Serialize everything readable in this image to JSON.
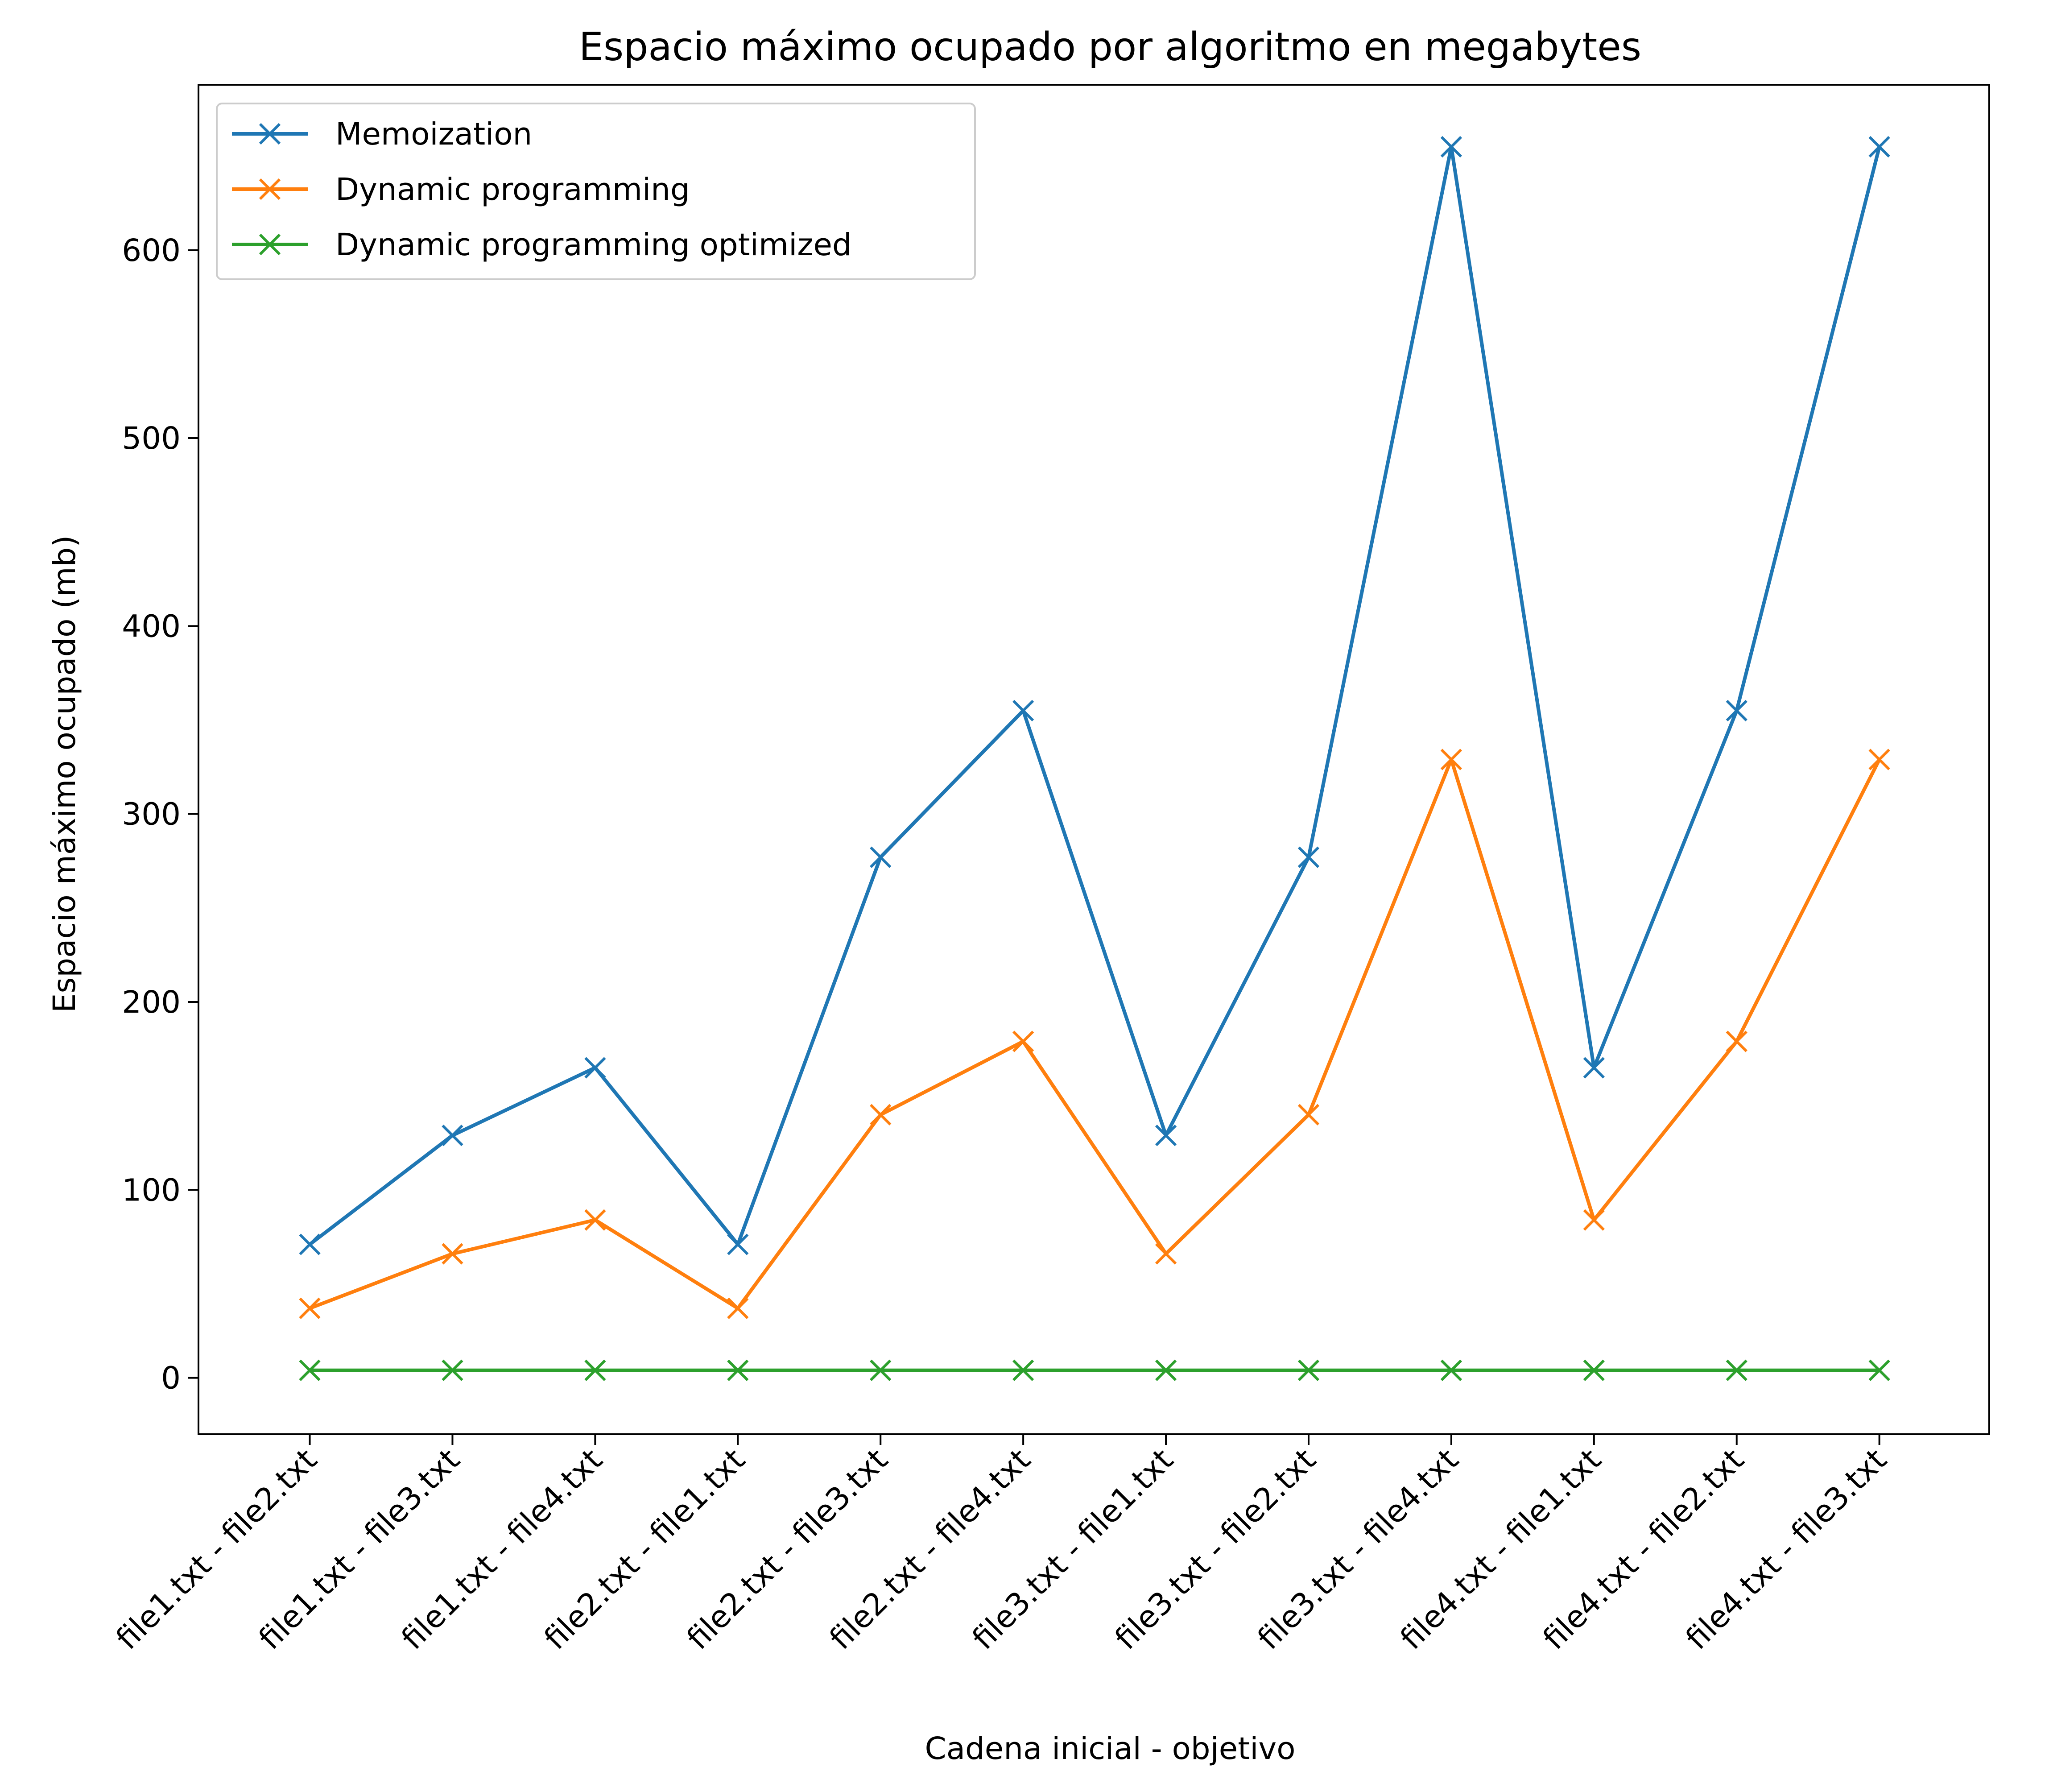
{
  "chart_data": {
    "type": "line",
    "title": "Espacio máximo ocupado por algoritmo en megabytes",
    "xlabel": "Cadena inicial - objetivo",
    "ylabel": "Espacio máximo ocupado (mb)",
    "categories": [
      "file1.txt - file2.txt",
      "file1.txt - file3.txt",
      "file1.txt - file4.txt",
      "file2.txt - file1.txt",
      "file2.txt - file3.txt",
      "file2.txt - file4.txt",
      "file3.txt - file1.txt",
      "file3.txt - file2.txt",
      "file3.txt - file4.txt",
      "file4.txt - file1.txt",
      "file4.txt - file2.txt",
      "file4.txt - file3.txt"
    ],
    "series": [
      {
        "name": "Memoization",
        "color": "#1f77b4",
        "marker": "x",
        "values": [
          71,
          129,
          165,
          71,
          277,
          355,
          129,
          277,
          655,
          165,
          355,
          655
        ]
      },
      {
        "name": "Dynamic programming",
        "color": "#ff7f0e",
        "marker": "x",
        "values": [
          37,
          66,
          84,
          37,
          140,
          179,
          66,
          140,
          329,
          84,
          179,
          329
        ]
      },
      {
        "name": "Dynamic programming optimized",
        "color": "#2ca02c",
        "marker": "x",
        "values": [
          4,
          4,
          4,
          4,
          4,
          4,
          4,
          4,
          4,
          4,
          4,
          4
        ]
      }
    ],
    "yticks": [
      0,
      100,
      200,
      300,
      400,
      500,
      600
    ],
    "ylim": [
      -30,
      688
    ],
    "grid": false,
    "legend_position": "upper-left"
  }
}
